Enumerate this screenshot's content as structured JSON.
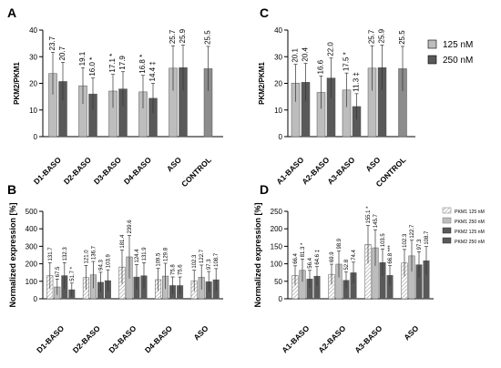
{
  "colors": {
    "light": "#bdbdbd",
    "dark": "#595959",
    "control": "#8c8c8c",
    "hatch": "#9a9a9a",
    "axis": "#000000"
  },
  "legend_top": {
    "items": [
      "125 nM",
      "250 nM"
    ]
  },
  "legend_bottom": {
    "items": [
      "PKM1 125 nM",
      "PKM1 250 nM",
      "PKM2 125 nM",
      "PKM2 250 nM"
    ]
  },
  "chart_data": [
    {
      "panel": "A",
      "type": "bar",
      "ylabel": "PKM2/PKM1",
      "ylim": [
        0,
        40
      ],
      "yticks": [
        0,
        10,
        20,
        30,
        40
      ],
      "categories": [
        "D1-BASO",
        "D2-BASO",
        "D3-BASO",
        "D4-BASO",
        "ASO",
        "CONTROL"
      ],
      "groups": [
        {
          "category": "D1-BASO",
          "bars": [
            {
              "series": "125 nM",
              "value": 23.7,
              "label": "23.7",
              "mark": ""
            },
            {
              "series": "250 nM",
              "value": 20.7,
              "label": "20.7",
              "mark": ""
            }
          ]
        },
        {
          "category": "D2-BASO",
          "bars": [
            {
              "series": "125 nM",
              "value": 19.1,
              "label": "19.1",
              "mark": ""
            },
            {
              "series": "250 nM",
              "value": 16.0,
              "label": "16.0",
              "mark": "*"
            }
          ]
        },
        {
          "category": "D3-BASO",
          "bars": [
            {
              "series": "125 nM",
              "value": 17.1,
              "label": "17.1",
              "mark": "*"
            },
            {
              "series": "250 nM",
              "value": 17.9,
              "label": "17.9",
              "mark": ""
            }
          ]
        },
        {
          "category": "D4-BASO",
          "bars": [
            {
              "series": "125 nM",
              "value": 16.8,
              "label": "16.8",
              "mark": "*"
            },
            {
              "series": "250 nM",
              "value": 14.4,
              "label": "14.4",
              "mark": "‡"
            }
          ]
        },
        {
          "category": "ASO",
          "bars": [
            {
              "series": "125 nM",
              "value": 25.7,
              "label": "25.7",
              "mark": ""
            },
            {
              "series": "250 nM",
              "value": 25.9,
              "label": "25.9",
              "mark": ""
            }
          ]
        },
        {
          "category": "CONTROL",
          "bars": [
            {
              "series": "control",
              "value": 25.5,
              "label": "25.5",
              "mark": ""
            }
          ]
        }
      ]
    },
    {
      "panel": "C",
      "type": "bar",
      "ylabel": "PKM2/PKM1",
      "ylim": [
        0,
        40
      ],
      "yticks": [
        0,
        10,
        20,
        30,
        40
      ],
      "categories": [
        "A1-BASO",
        "A2-BASO",
        "A3-BASO",
        "ASO",
        "CONTROL"
      ],
      "groups": [
        {
          "category": "A1-BASO",
          "bars": [
            {
              "series": "125 nM",
              "value": 20.1,
              "label": "20.1",
              "mark": ""
            },
            {
              "series": "250 nM",
              "value": 20.4,
              "label": "20.4",
              "mark": ""
            }
          ]
        },
        {
          "category": "A2-BASO",
          "bars": [
            {
              "series": "125 nM",
              "value": 16.6,
              "label": "16.6",
              "mark": ""
            },
            {
              "series": "250 nM",
              "value": 22.0,
              "label": "22.0",
              "mark": ""
            }
          ]
        },
        {
          "category": "A3-BASO",
          "bars": [
            {
              "series": "125 nM",
              "value": 17.5,
              "label": "17.5",
              "mark": "*"
            },
            {
              "series": "250 nM",
              "value": 11.3,
              "label": "11.3",
              "mark": "‡"
            }
          ]
        },
        {
          "category": "ASO",
          "bars": [
            {
              "series": "125 nM",
              "value": 25.7,
              "label": "25.7",
              "mark": ""
            },
            {
              "series": "250 nM",
              "value": 25.9,
              "label": "25.9",
              "mark": ""
            }
          ]
        },
        {
          "category": "CONTROL",
          "bars": [
            {
              "series": "control",
              "value": 25.5,
              "label": "25.5",
              "mark": ""
            }
          ]
        }
      ]
    },
    {
      "panel": "B",
      "type": "bar",
      "ylabel": "Normalized expression [%]",
      "ylim": [
        0,
        500
      ],
      "yticks": [
        0,
        100,
        200,
        300,
        400,
        500
      ],
      "categories": [
        "D1-BASO",
        "D2-BASO",
        "D3-BASO",
        "D4-BASO",
        "ASO"
      ],
      "groups": [
        {
          "category": "D1-BASO",
          "bars": [
            {
              "series": "PKM1 125 nM",
              "value": 131.7,
              "label": "131.7",
              "mark": ""
            },
            {
              "series": "PKM1 250 nM",
              "value": 67.5,
              "label": "67.5",
              "mark": ""
            },
            {
              "series": "PKM2 125 nM",
              "value": 132.3,
              "label": "132.3",
              "mark": ""
            },
            {
              "series": "PKM2 250 nM",
              "value": 51.7,
              "label": "51.7",
              "mark": "*"
            }
          ]
        },
        {
          "category": "D2-BASO",
          "bars": [
            {
              "series": "PKM1 125 nM",
              "value": 121.0,
              "label": "121.0",
              "mark": ""
            },
            {
              "series": "PKM1 250 nM",
              "value": 136.7,
              "label": "136.7",
              "mark": ""
            },
            {
              "series": "PKM2 125 nM",
              "value": 94.3,
              "label": "94.3",
              "mark": ""
            },
            {
              "series": "PKM2 250 nM",
              "value": 103.9,
              "label": "103.9",
              "mark": ""
            }
          ]
        },
        {
          "category": "D3-BASO",
          "bars": [
            {
              "series": "PKM1 125 nM",
              "value": 181.4,
              "label": "181.4",
              "mark": ""
            },
            {
              "series": "PKM1 250 nM",
              "value": 239.6,
              "label": "239.6",
              "mark": ""
            },
            {
              "series": "PKM2 125 nM",
              "value": 124.4,
              "label": "124.4",
              "mark": ""
            },
            {
              "series": "PKM2 250 nM",
              "value": 131.9,
              "label": "131.9",
              "mark": ""
            }
          ]
        },
        {
          "category": "D4-BASO",
          "bars": [
            {
              "series": "PKM1 125 nM",
              "value": 109.5,
              "label": "109.5",
              "mark": ""
            },
            {
              "series": "PKM1 250 nM",
              "value": 129.8,
              "label": "129.8",
              "mark": ""
            },
            {
              "series": "PKM2 125 nM",
              "value": 75.8,
              "label": "75.8",
              "mark": ""
            },
            {
              "series": "PKM2 250 nM",
              "value": 75.6,
              "label": "75.6",
              "mark": ""
            }
          ]
        },
        {
          "category": "ASO",
          "bars": [
            {
              "series": "PKM1 125 nM",
              "value": 102.3,
              "label": "102.3",
              "mark": ""
            },
            {
              "series": "PKM1 250 nM",
              "value": 122.7,
              "label": "122.7",
              "mark": ""
            },
            {
              "series": "PKM2 125 nM",
              "value": 97.3,
              "label": "97.3",
              "mark": ""
            },
            {
              "series": "PKM2 250 nM",
              "value": 108.7,
              "label": "108.7",
              "mark": ""
            }
          ]
        }
      ]
    },
    {
      "panel": "D",
      "type": "bar",
      "ylabel": "Normalized expression [%]",
      "ylim": [
        0,
        250
      ],
      "yticks": [
        0,
        50,
        100,
        150,
        200,
        250
      ],
      "categories": [
        "A1-BASO",
        "A2-BASO",
        "A3-BASO",
        "ASO"
      ],
      "groups": [
        {
          "category": "A1-BASO",
          "bars": [
            {
              "series": "PKM1 125 nM",
              "value": 66.4,
              "label": "66.4",
              "mark": ""
            },
            {
              "series": "PKM1 250 nM",
              "value": 81.3,
              "label": "81.3",
              "mark": "*"
            },
            {
              "series": "PKM2 125 nM",
              "value": 56.4,
              "label": "56.4",
              "mark": ""
            },
            {
              "series": "PKM2 250 nM",
              "value": 64.6,
              "label": "64.6",
              "mark": "‡"
            }
          ]
        },
        {
          "category": "A2-BASO",
          "bars": [
            {
              "series": "PKM1 125 nM",
              "value": 69.9,
              "label": "69.9",
              "mark": ""
            },
            {
              "series": "PKM1 250 nM",
              "value": 98.9,
              "label": "98.9",
              "mark": ""
            },
            {
              "series": "PKM2 125 nM",
              "value": 52.8,
              "label": "52.8",
              "mark": ""
            },
            {
              "series": "PKM2 250 nM",
              "value": 74.4,
              "label": "74.4",
              "mark": ""
            }
          ]
        },
        {
          "category": "A3-BASO",
          "bars": [
            {
              "series": "PKM1 125 nM",
              "value": 155.1,
              "label": "155.1",
              "mark": "*"
            },
            {
              "series": "PKM1 250 nM",
              "value": 145.7,
              "label": "145.7",
              "mark": ""
            },
            {
              "series": "PKM2 125 nM",
              "value": 103.5,
              "label": "103.5",
              "mark": ""
            },
            {
              "series": "PKM2 250 nM",
              "value": 66.8,
              "label": "66.8",
              "mark": "***"
            }
          ]
        },
        {
          "category": "ASO",
          "bars": [
            {
              "series": "PKM1 125 nM",
              "value": 102.3,
              "label": "102.3",
              "mark": ""
            },
            {
              "series": "PKM1 250 nM",
              "value": 122.7,
              "label": "122.7",
              "mark": ""
            },
            {
              "series": "PKM2 125 nM",
              "value": 97.3,
              "label": "97.3",
              "mark": ""
            },
            {
              "series": "PKM2 250 nM",
              "value": 108.7,
              "label": "108.7",
              "mark": ""
            }
          ]
        }
      ]
    }
  ]
}
